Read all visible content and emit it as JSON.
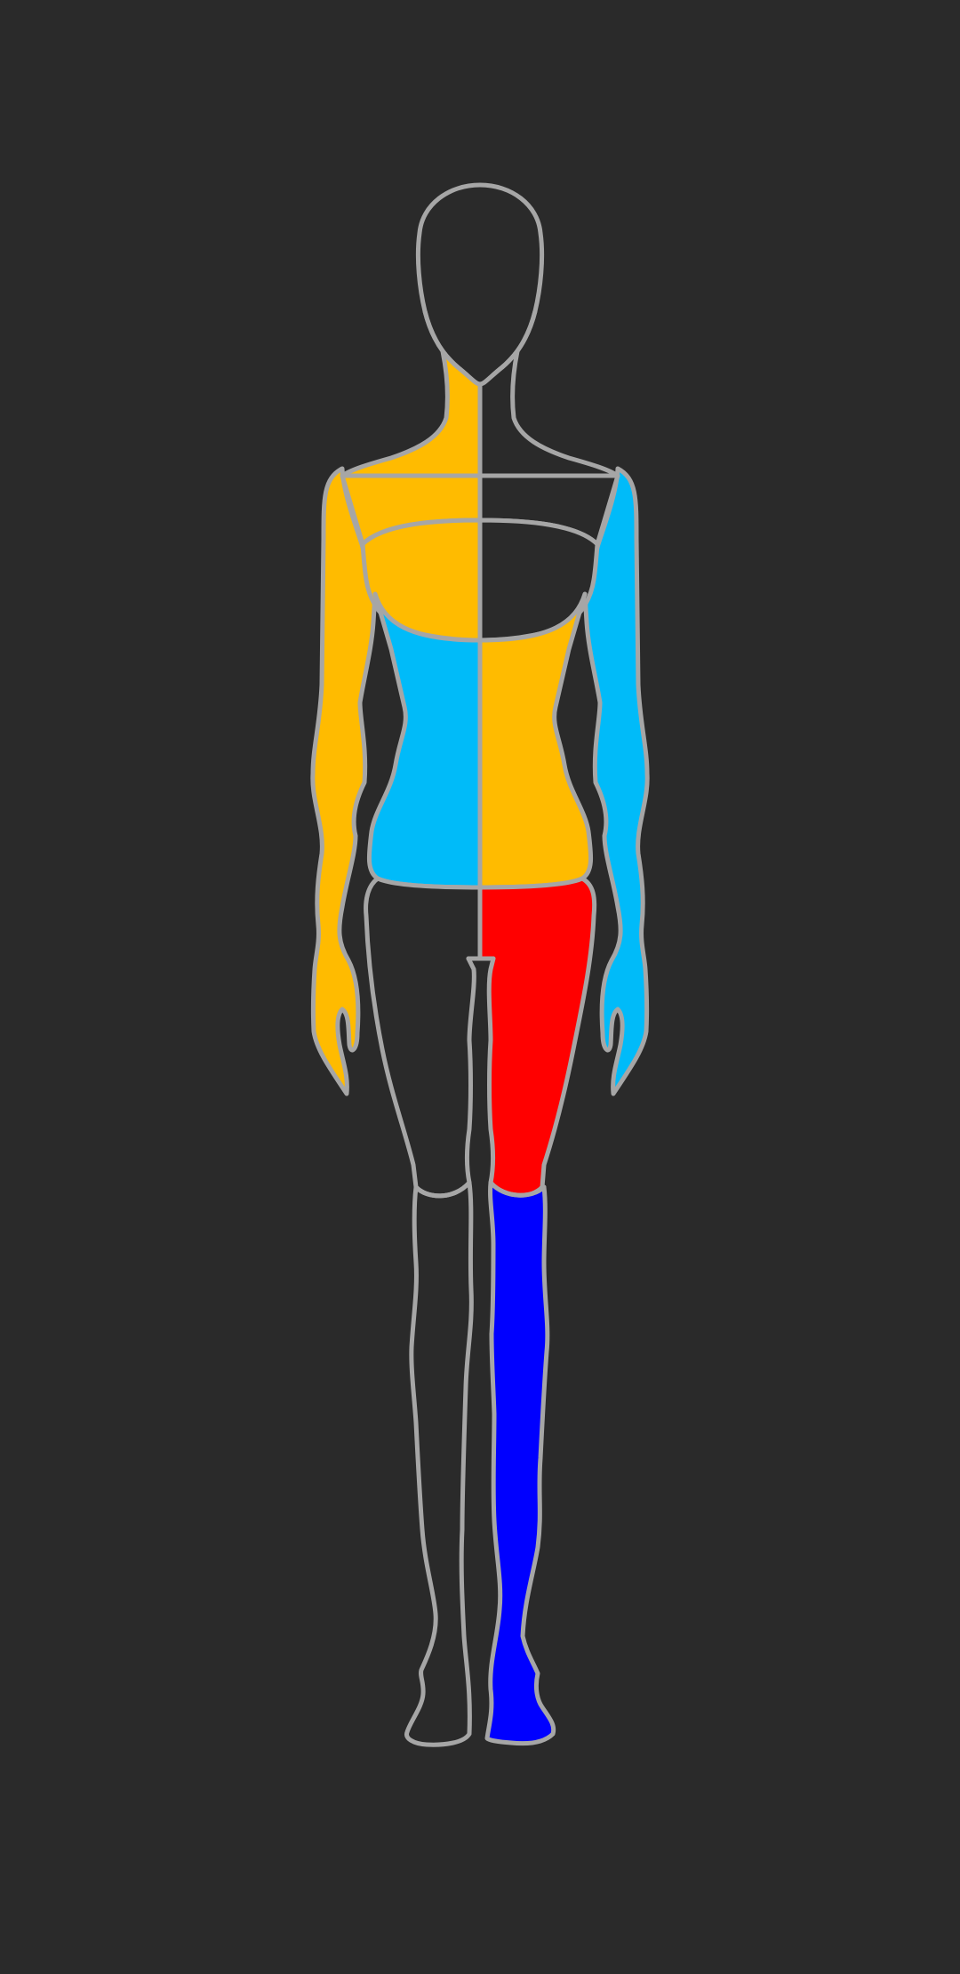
{
  "app": {
    "background_color": "#2a2a2a",
    "outline_color": "#a6a6a6"
  },
  "palette": {
    "amber": "#ffbb00",
    "sky": "#00bbf9",
    "red": "#ff0000",
    "blue": "#0000ff",
    "unselected": "#2a2a2a"
  },
  "regions": [
    {
      "id": "head",
      "color": "unselected"
    },
    {
      "id": "neck-right",
      "color": "amber"
    },
    {
      "id": "neck-left",
      "color": "unselected"
    },
    {
      "id": "upper-chest-right",
      "color": "amber"
    },
    {
      "id": "upper-chest-left",
      "color": "unselected"
    },
    {
      "id": "lower-chest-right",
      "color": "amber"
    },
    {
      "id": "lower-chest-left",
      "color": "unselected"
    },
    {
      "id": "abdomen-right",
      "color": "sky"
    },
    {
      "id": "abdomen-left",
      "color": "amber"
    },
    {
      "id": "arm-right",
      "color": "amber"
    },
    {
      "id": "arm-left",
      "color": "sky"
    },
    {
      "id": "thigh-right",
      "color": "unselected"
    },
    {
      "id": "thigh-left",
      "color": "red"
    },
    {
      "id": "lower-leg-right",
      "color": "unselected"
    },
    {
      "id": "lower-leg-left",
      "color": "blue"
    }
  ]
}
